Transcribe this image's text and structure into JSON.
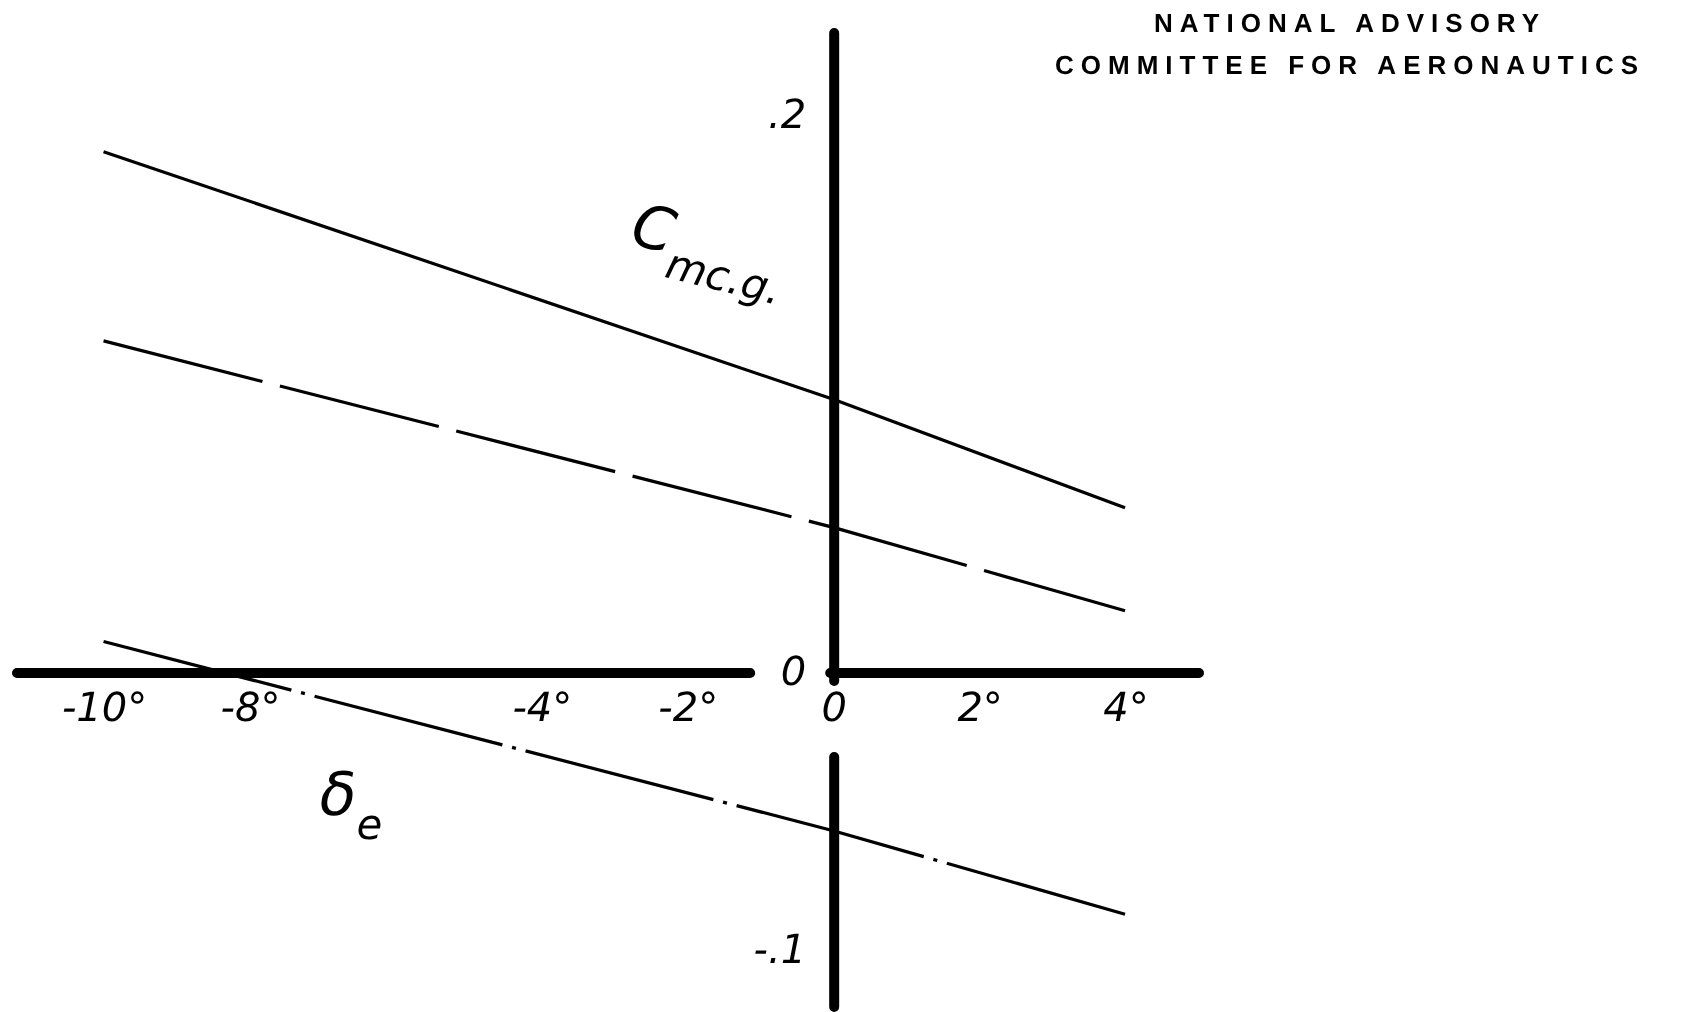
{
  "chart_data": {
    "type": "line",
    "xlabel": "δ$_{e}$",
    "ylabel": "C$_{mc.g.}$",
    "annotations": [
      "NATIONAL ADVISORY COMMITTEE FOR AERONAUTICS"
    ],
    "x": [
      -10,
      0,
      4
    ],
    "series": [
      {
        "color": "#000000",
        "line_style": "solid",
        "values": [
          0.187,
          0.098,
          0.059
        ]
      },
      {
        "color": "#000000",
        "line_style": "dashed",
        "values": [
          0.119,
          0.052,
          0.022
        ]
      },
      {
        "color": "#000000",
        "line_style": "dashdot",
        "values": [
          0.011,
          -0.057,
          -0.087
        ]
      }
    ],
    "xlim": [
      -11.2,
      5
    ],
    "ylim": [
      -0.12,
      0.23
    ],
    "xticks": [
      {
        "value": -10,
        "label": "-10°"
      },
      {
        "value": -8,
        "label": "-8°"
      },
      {
        "value": -4,
        "label": "-4°"
      },
      {
        "value": -2,
        "label": "-2°"
      },
      0,
      {
        "value": 2,
        "label": "2°"
      },
      {
        "value": 4,
        "label": "4°"
      }
    ],
    "yticks": [
      {
        "value": 0.2,
        "label": ".2"
      },
      0,
      {
        "value": -0.1,
        "label": "-.1"
      }
    ],
    "marker": "none"
  }
}
